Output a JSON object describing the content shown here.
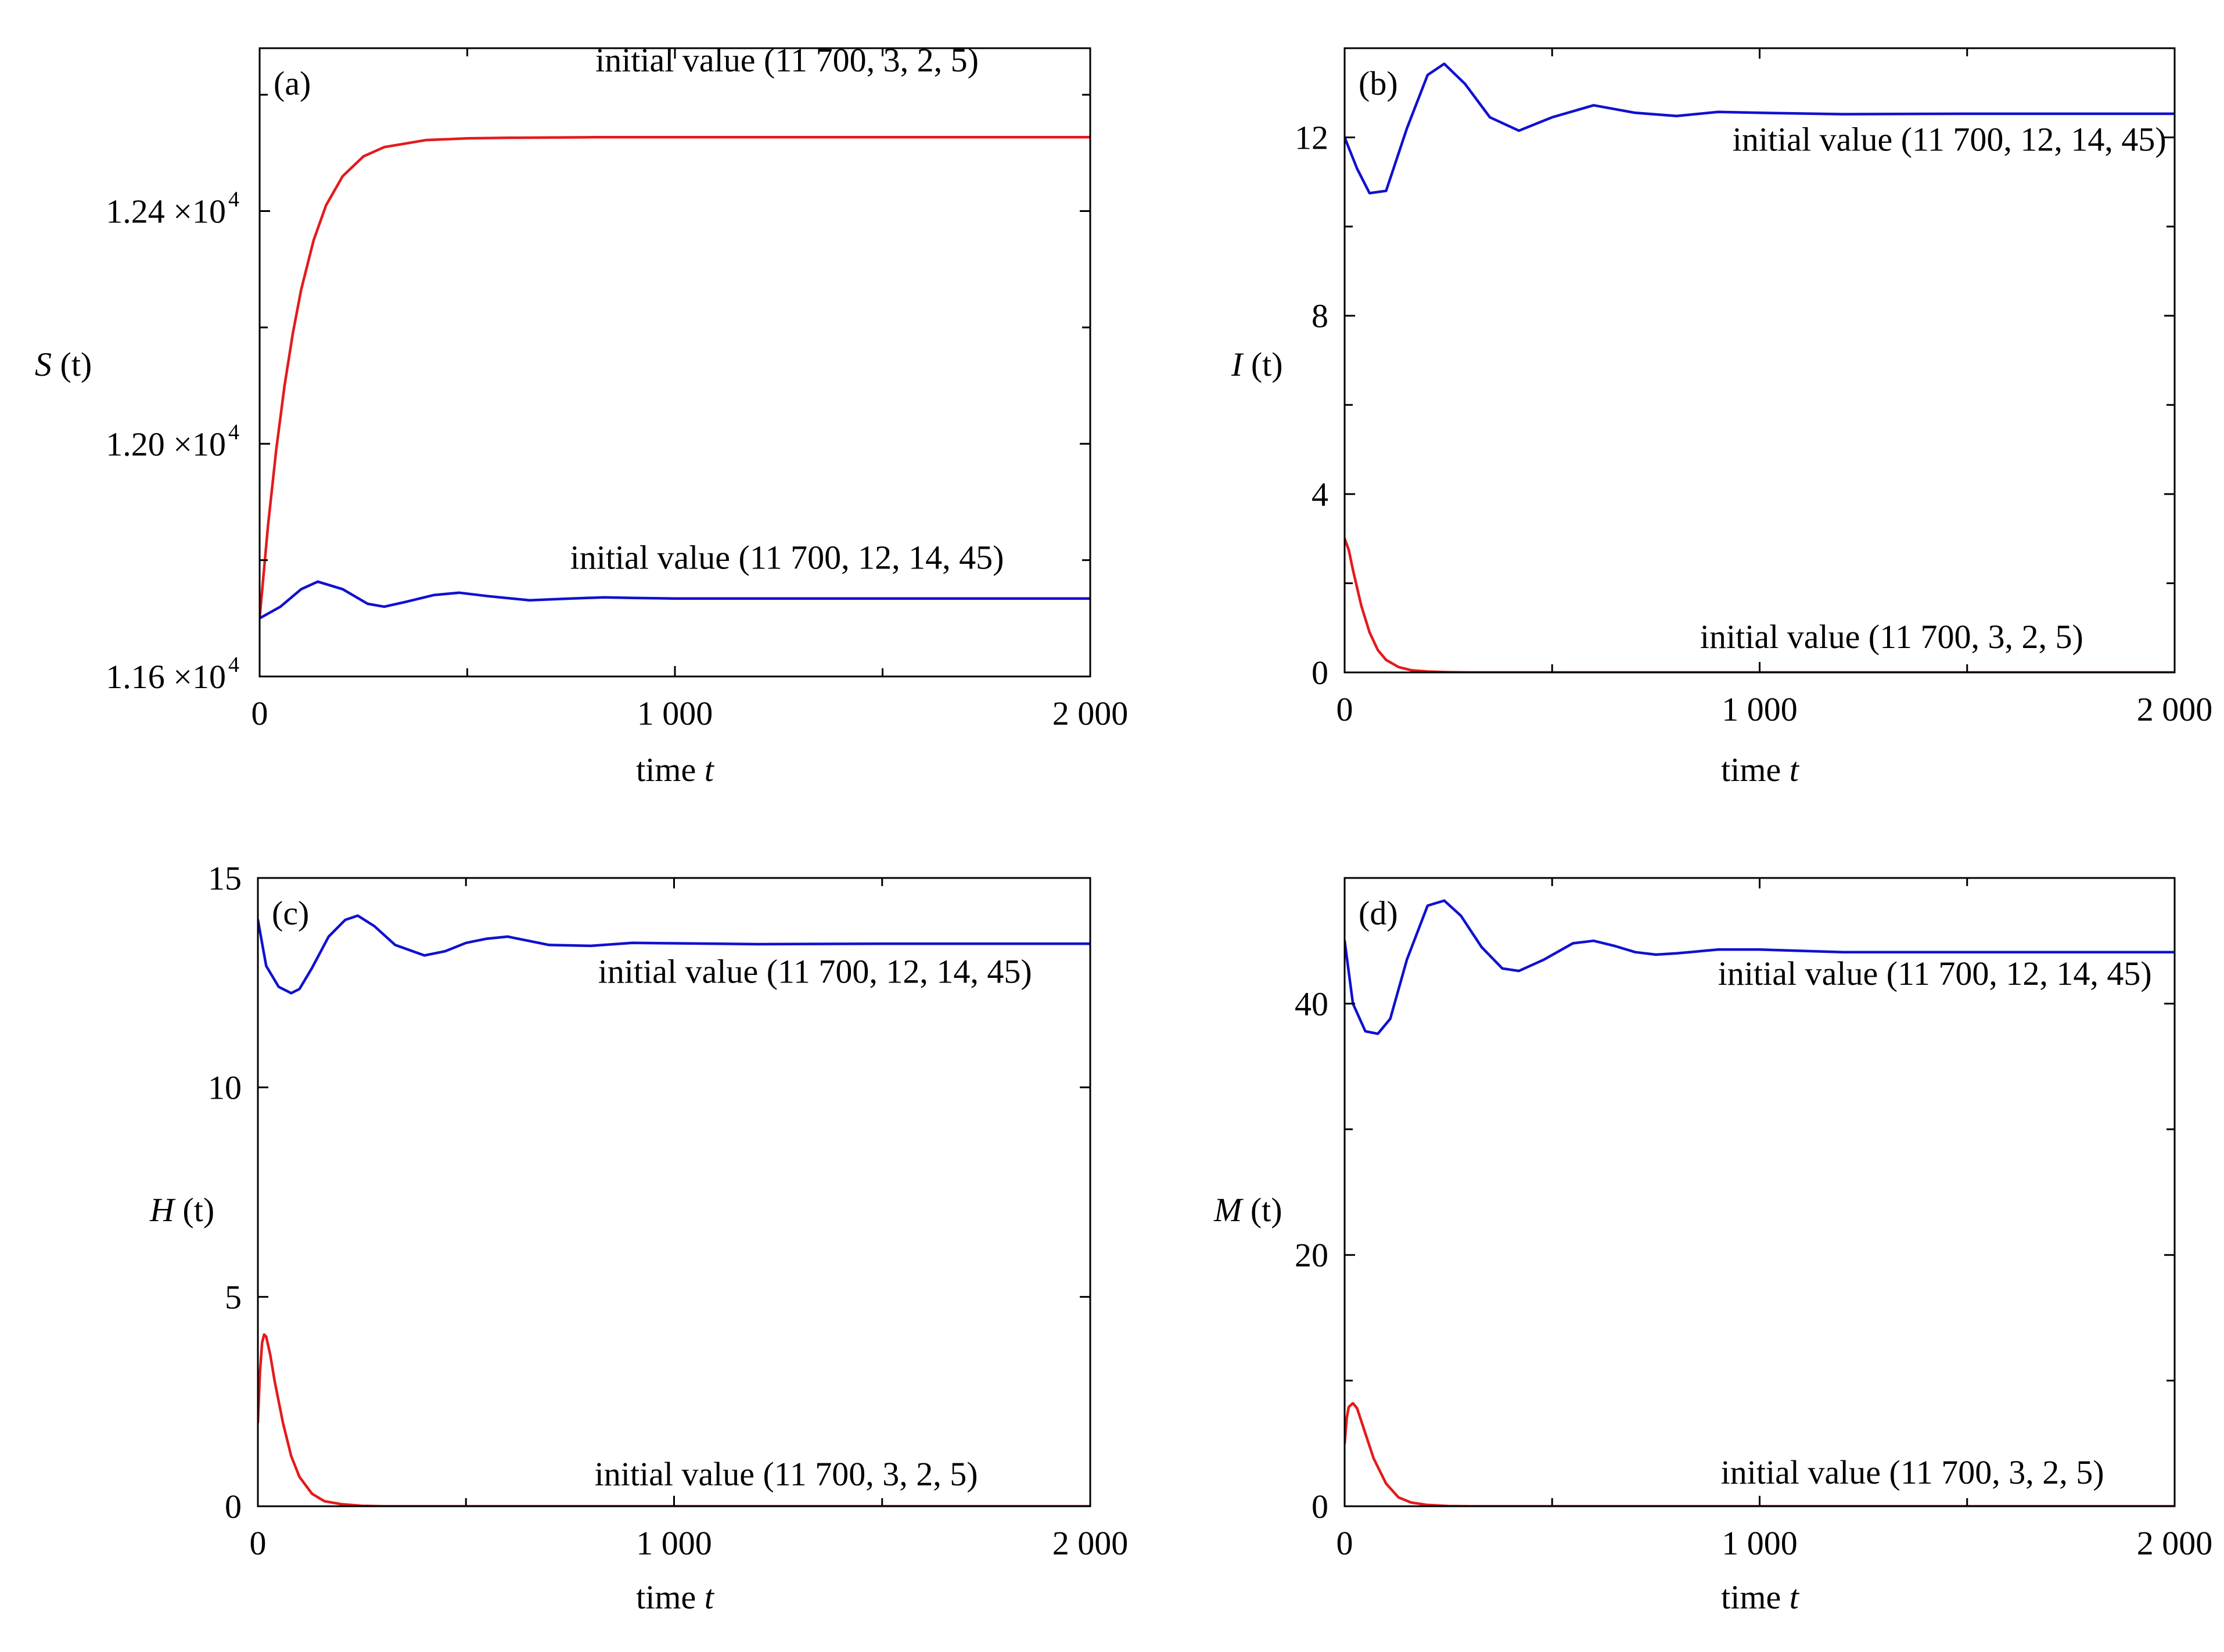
{
  "palette": {
    "red_series": "#e41a1c",
    "blue_series": "#1010d0",
    "axis": "#000000"
  },
  "chart_data": [
    {
      "type": "line",
      "panel_label": "(a)",
      "xlabel": "time t",
      "xlabel_text": "time ",
      "xlabel_var": "t",
      "ylabel": "S (t)",
      "ylabel_var": "S",
      "ylabel_arg": " (t)",
      "xlim": [
        0,
        2000
      ],
      "ylim": [
        11600,
        12680
      ],
      "y_scale_note": "×10^4",
      "x_ticks": [
        {
          "value": 0,
          "label": "0"
        },
        {
          "value": 1000,
          "label": "1 000"
        },
        {
          "value": 2000,
          "label": "2 000"
        }
      ],
      "y_ticks": [
        {
          "value": 11600,
          "label": "1.16 ×10",
          "exp": "4"
        },
        {
          "value": 12000,
          "label": "1.20 ×10",
          "exp": "4"
        },
        {
          "value": 12400,
          "label": "1.24 ×10",
          "exp": "4"
        }
      ],
      "minor_y_ticks": [
        11800,
        12200,
        12600
      ],
      "minor_x_ticks": [
        500,
        1500
      ],
      "grid": false,
      "series": [
        {
          "color": "#e41a1c",
          "x": [
            0,
            20,
            40,
            60,
            80,
            100,
            130,
            160,
            200,
            250,
            300,
            400,
            500,
            600,
            800,
            1000,
            1500,
            2000
          ],
          "y": [
            11700,
            11858,
            11990,
            12100,
            12190,
            12265,
            12350,
            12410,
            12460,
            12494,
            12510,
            12522,
            12525,
            12526,
            12527,
            12527,
            12527,
            12527
          ]
        },
        {
          "color": "#1010d0",
          "x": [
            0,
            50,
            100,
            140,
            200,
            260,
            300,
            350,
            420,
            480,
            550,
            650,
            750,
            830,
            900,
            1000,
            1200,
            1500,
            2000
          ],
          "y": [
            11700,
            11720,
            11750,
            11763,
            11750,
            11725,
            11720,
            11728,
            11740,
            11744,
            11738,
            11731,
            11734,
            11736,
            11735,
            11734,
            11734,
            11734,
            11734
          ]
        }
      ],
      "annotations": [
        {
          "text": "initial value  (11 700, 3, 2, 5)",
          "x": 1270,
          "y": 12640,
          "anchor": "middle"
        },
        {
          "text": "initial value  (11 700, 12, 14, 45)",
          "x": 1270,
          "y": 11785,
          "anchor": "middle"
        }
      ]
    },
    {
      "type": "line",
      "panel_label": "(b)",
      "xlabel": "time t",
      "xlabel_text": "time ",
      "xlabel_var": "t",
      "ylabel": "I (t)",
      "ylabel_var": "I",
      "ylabel_arg": " (t)",
      "xlim": [
        0,
        2000
      ],
      "ylim": [
        0,
        14
      ],
      "x_ticks": [
        {
          "value": 0,
          "label": "0"
        },
        {
          "value": 1000,
          "label": "1 000"
        },
        {
          "value": 2000,
          "label": "2 000"
        }
      ],
      "y_ticks": [
        {
          "value": 0,
          "label": "0"
        },
        {
          "value": 4,
          "label": "4"
        },
        {
          "value": 8,
          "label": "8"
        },
        {
          "value": 12,
          "label": "12"
        }
      ],
      "minor_y_ticks": [
        2,
        6,
        10
      ],
      "minor_x_ticks": [
        500,
        1500
      ],
      "grid": false,
      "series": [
        {
          "color": "#1010d0",
          "x": [
            0,
            30,
            60,
            100,
            150,
            200,
            240,
            290,
            350,
            420,
            500,
            600,
            700,
            800,
            900,
            1000,
            1200,
            1500,
            2000
          ],
          "y": [
            12,
            11.3,
            10.75,
            10.8,
            12.2,
            13.4,
            13.65,
            13.2,
            12.45,
            12.15,
            12.45,
            12.72,
            12.55,
            12.48,
            12.57,
            12.55,
            12.52,
            12.53,
            12.53
          ]
        },
        {
          "color": "#e41a1c",
          "x": [
            0,
            10,
            20,
            40,
            60,
            80,
            100,
            130,
            160,
            200,
            250,
            300,
            500,
            1000,
            2000
          ],
          "y": [
            3,
            2.75,
            2.3,
            1.5,
            0.9,
            0.5,
            0.28,
            0.12,
            0.05,
            0.02,
            0.005,
            0,
            0,
            0,
            0
          ]
        }
      ],
      "annotations": [
        {
          "text": "initial value  (11 700, 12, 14, 45)",
          "x": 1980,
          "y": 11.7,
          "anchor": "end"
        },
        {
          "text": "initial value  (11 700, 3, 2, 5)",
          "x": 1780,
          "y": 0.55,
          "anchor": "end"
        }
      ]
    },
    {
      "type": "line",
      "panel_label": "(c)",
      "xlabel": "time t",
      "xlabel_text": "time ",
      "xlabel_var": "t",
      "ylabel": "H (t)",
      "ylabel_var": "H",
      "ylabel_arg": " (t)",
      "xlim": [
        0,
        2000
      ],
      "ylim": [
        0,
        15
      ],
      "x_ticks": [
        {
          "value": 0,
          "label": "0"
        },
        {
          "value": 1000,
          "label": "1 000"
        },
        {
          "value": 2000,
          "label": "2 000"
        }
      ],
      "y_ticks": [
        {
          "value": 0,
          "label": "0"
        },
        {
          "value": 5,
          "label": "5"
        },
        {
          "value": 10,
          "label": "10"
        },
        {
          "value": 15,
          "label": "15"
        }
      ],
      "minor_y_ticks": [],
      "minor_x_ticks": [
        500,
        1500
      ],
      "grid": false,
      "series": [
        {
          "color": "#1010d0",
          "x": [
            0,
            20,
            50,
            80,
            100,
            130,
            170,
            210,
            240,
            280,
            330,
            400,
            450,
            500,
            550,
            600,
            650,
            700,
            800,
            900,
            1000,
            1200,
            1500,
            2000
          ],
          "y": [
            14,
            12.9,
            12.4,
            12.25,
            12.35,
            12.85,
            13.6,
            14.0,
            14.1,
            13.85,
            13.4,
            13.15,
            13.25,
            13.45,
            13.55,
            13.6,
            13.5,
            13.4,
            13.38,
            13.45,
            13.44,
            13.42,
            13.43,
            13.43
          ]
        },
        {
          "color": "#e41a1c",
          "x": [
            0,
            5,
            10,
            15,
            20,
            30,
            40,
            60,
            80,
            100,
            130,
            160,
            200,
            250,
            300,
            400,
            500,
            1000,
            2000
          ],
          "y": [
            2,
            3.2,
            3.9,
            4.1,
            4.05,
            3.6,
            3.0,
            2.0,
            1.2,
            0.7,
            0.3,
            0.12,
            0.05,
            0.01,
            0,
            0,
            0,
            0,
            0
          ]
        }
      ],
      "annotations": [
        {
          "text": "initial value  (11 700, 12, 14, 45)",
          "x": 1860,
          "y": 12.5,
          "anchor": "end"
        },
        {
          "text": "initial value (11 700, 3, 2, 5)",
          "x": 1730,
          "y": 0.5,
          "anchor": "end"
        }
      ]
    },
    {
      "type": "line",
      "panel_label": "(d)",
      "xlabel": "time t",
      "xlabel_text": "time ",
      "xlabel_var": "t",
      "ylabel": "M (t)",
      "ylabel_var": "M",
      "ylabel_arg": " (t)",
      "xlim": [
        0,
        2000
      ],
      "ylim": [
        0,
        50
      ],
      "x_ticks": [
        {
          "value": 0,
          "label": "0"
        },
        {
          "value": 1000,
          "label": "1 000"
        },
        {
          "value": 2000,
          "label": "2 000"
        }
      ],
      "y_ticks": [
        {
          "value": 0,
          "label": "0"
        },
        {
          "value": 20,
          "label": "20"
        },
        {
          "value": 40,
          "label": "40"
        }
      ],
      "minor_y_ticks": [
        10,
        30
      ],
      "minor_x_ticks": [
        500,
        1500
      ],
      "grid": false,
      "series": [
        {
          "color": "#1010d0",
          "x": [
            0,
            20,
            50,
            80,
            110,
            150,
            200,
            240,
            280,
            330,
            380,
            420,
            480,
            550,
            600,
            650,
            700,
            750,
            800,
            900,
            1000,
            1200,
            1500,
            2000
          ],
          "y": [
            45,
            40,
            37.8,
            37.6,
            38.8,
            43.5,
            47.8,
            48.2,
            47,
            44.5,
            42.8,
            42.6,
            43.5,
            44.8,
            45,
            44.6,
            44.1,
            43.9,
            44,
            44.3,
            44.3,
            44.1,
            44.1,
            44.1
          ]
        },
        {
          "color": "#e41a1c",
          "x": [
            0,
            5,
            10,
            20,
            30,
            50,
            70,
            100,
            130,
            160,
            200,
            250,
            300,
            400,
            500,
            1000,
            2000
          ],
          "y": [
            5,
            7,
            7.9,
            8.2,
            7.8,
            5.8,
            3.8,
            1.8,
            0.7,
            0.3,
            0.1,
            0.02,
            0,
            0,
            0,
            0,
            0
          ]
        }
      ],
      "annotations": [
        {
          "text": "initial value  (11 700, 12, 14, 45)",
          "x": 1945,
          "y": 41.5,
          "anchor": "end"
        },
        {
          "text": "initial value  (11 700, 3, 2, 5)",
          "x": 1830,
          "y": 1.8,
          "anchor": "end"
        }
      ]
    }
  ]
}
